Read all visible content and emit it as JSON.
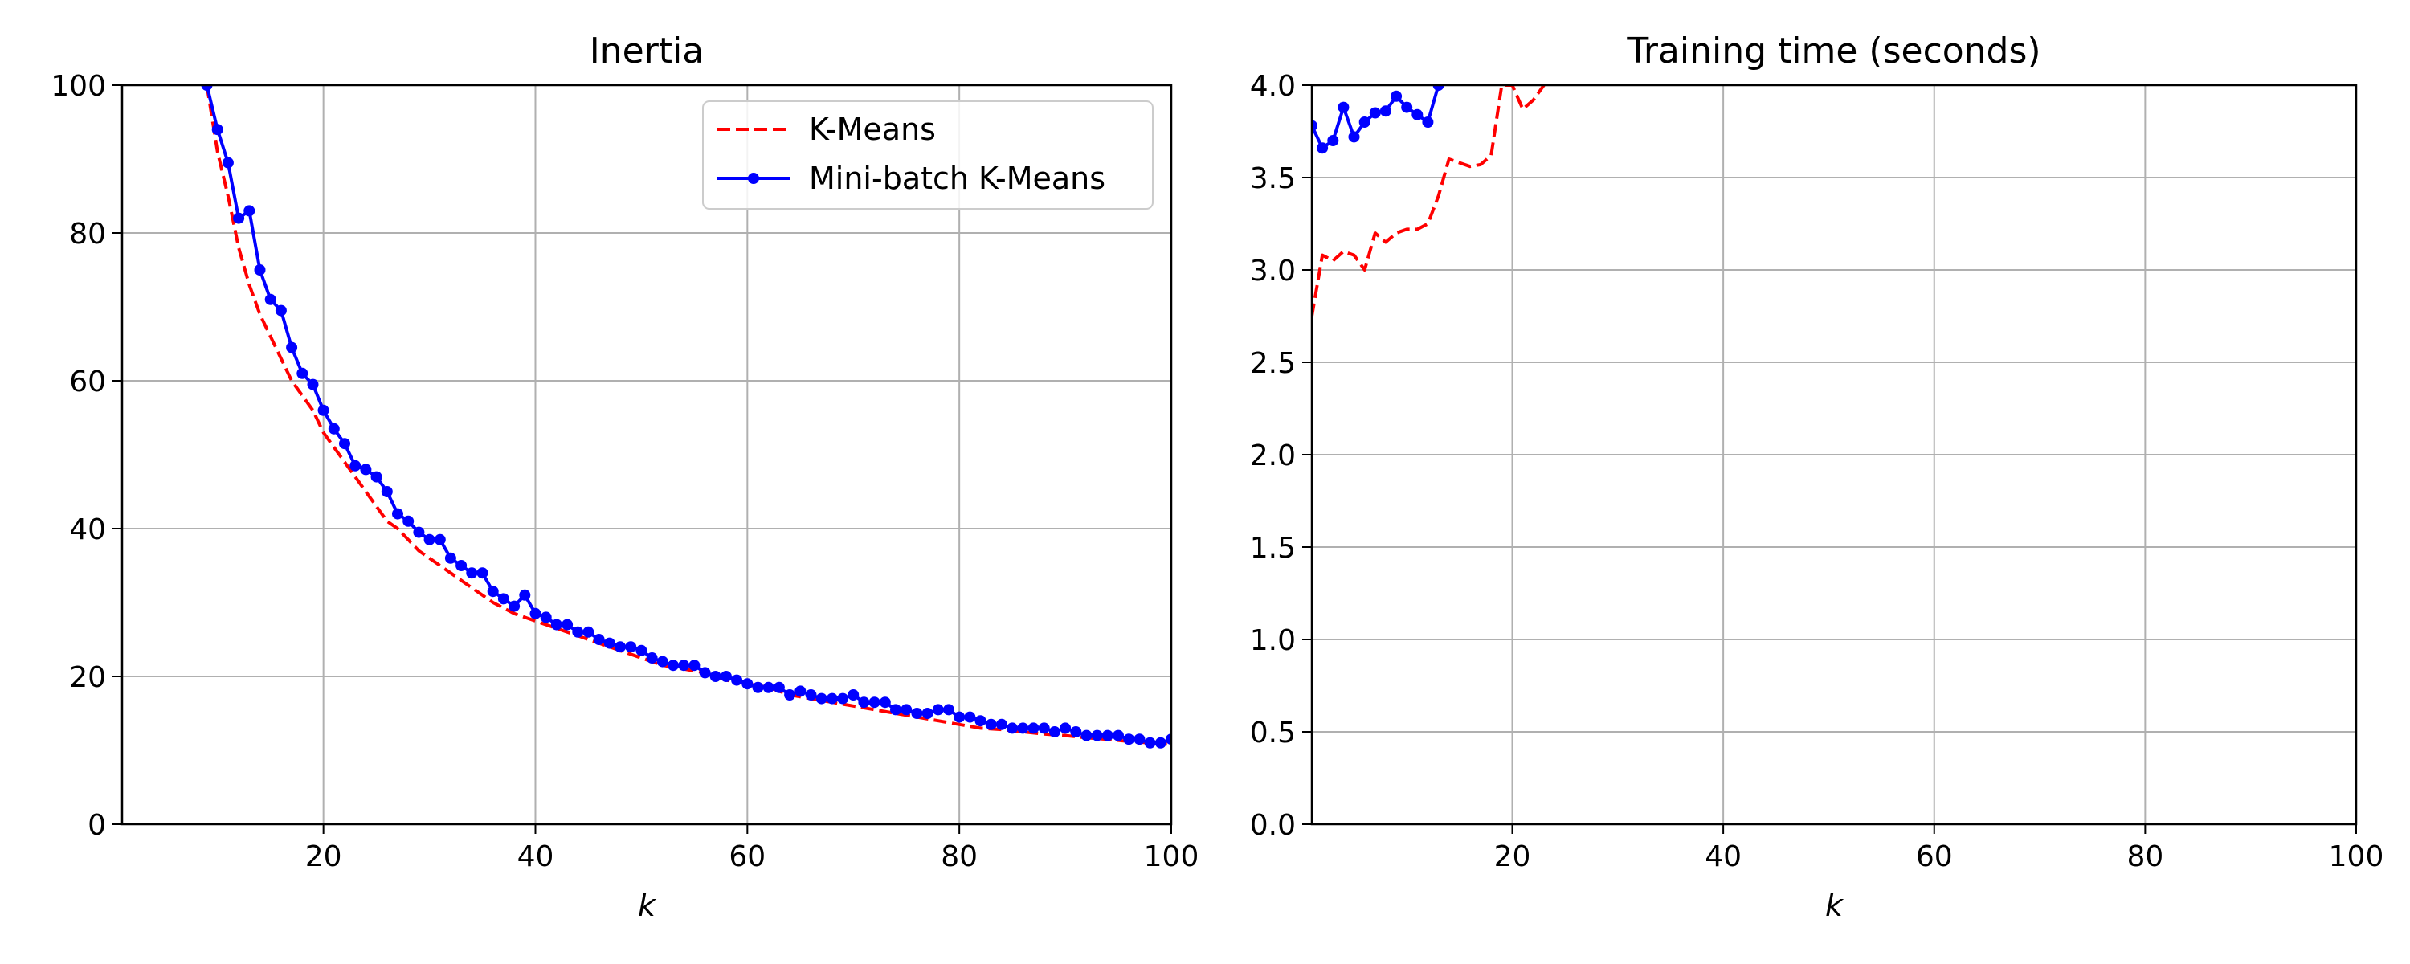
{
  "colors": {
    "kmeans": "#ff0000",
    "minibatch": "#0000ff",
    "grid": "#b0b0b0",
    "legend_border": "#cccccc"
  },
  "legend": {
    "kmeans_label": "K-Means",
    "minibatch_label": "Mini-batch K-Means",
    "placement": "upper-right of left chart"
  },
  "chart_data": [
    {
      "type": "line",
      "title": "Inertia",
      "xlabel": "k",
      "ylabel": "",
      "xlim": [
        1,
        100
      ],
      "ylim": [
        0,
        100
      ],
      "grid": true,
      "legend": true,
      "xticks": [
        "20",
        "40",
        "60",
        "80",
        "100"
      ],
      "yticks": [
        "0",
        "20",
        "40",
        "60",
        "80",
        "100"
      ],
      "series": [
        {
          "name": "K-Means",
          "style": "dashed",
          "x": [
            9,
            10,
            11,
            12,
            13,
            14,
            15,
            16,
            17,
            18,
            19,
            20,
            21,
            22,
            23,
            24,
            25,
            26,
            27,
            28,
            29,
            30,
            32,
            34,
            36,
            38,
            40,
            42,
            44,
            46,
            48,
            50,
            52,
            54,
            56,
            58,
            60,
            62,
            64,
            66,
            68,
            70,
            72,
            74,
            76,
            78,
            80,
            82,
            84,
            86,
            88,
            90,
            92,
            94,
            96,
            98,
            100
          ],
          "y": [
            100,
            91,
            85,
            78,
            73,
            69,
            66,
            63,
            60,
            58,
            56,
            53,
            51,
            49,
            47,
            45,
            43,
            41,
            40,
            38.5,
            37,
            36,
            34,
            32,
            30,
            28.5,
            27.5,
            26.5,
            25.5,
            24.5,
            23.5,
            22.5,
            21.5,
            21,
            20.5,
            19.5,
            19,
            18.5,
            17.5,
            17,
            16.5,
            16,
            15.5,
            15,
            14.5,
            14,
            13.5,
            13,
            12.8,
            12.5,
            12.2,
            12,
            11.7,
            11.5,
            11.2,
            11,
            10.8
          ]
        },
        {
          "name": "Mini-batch K-Means",
          "style": "solid-markers",
          "x": [
            9,
            10,
            11,
            12,
            13,
            14,
            15,
            16,
            17,
            18,
            19,
            20,
            21,
            22,
            23,
            24,
            25,
            26,
            27,
            28,
            29,
            30,
            31,
            32,
            33,
            34,
            35,
            36,
            37,
            38,
            39,
            40,
            41,
            42,
            43,
            44,
            45,
            46,
            47,
            48,
            49,
            50,
            51,
            52,
            53,
            54,
            55,
            56,
            57,
            58,
            59,
            60,
            61,
            62,
            63,
            64,
            65,
            66,
            67,
            68,
            69,
            70,
            71,
            72,
            73,
            74,
            75,
            76,
            77,
            78,
            79,
            80,
            81,
            82,
            83,
            84,
            85,
            86,
            87,
            88,
            89,
            90,
            91,
            92,
            93,
            94,
            95,
            96,
            97,
            98,
            99,
            100
          ],
          "y": [
            100,
            94,
            89.5,
            82,
            83,
            75,
            71,
            69.5,
            64.5,
            61,
            59.5,
            56,
            53.5,
            51.5,
            48.5,
            48,
            47,
            45,
            42,
            41,
            39.5,
            38.5,
            38.5,
            36,
            35,
            34,
            34,
            31.5,
            30.5,
            29.5,
            31,
            28.5,
            28,
            27,
            27,
            26,
            26,
            25,
            24.5,
            24,
            24,
            23.5,
            22.5,
            22,
            21.5,
            21.5,
            21.5,
            20.5,
            20,
            20,
            19.5,
            19,
            18.5,
            18.5,
            18.5,
            17.5,
            18,
            17.5,
            17,
            17,
            17,
            17.5,
            16.5,
            16.5,
            16.5,
            15.5,
            15.5,
            15,
            15,
            15.5,
            15.5,
            14.5,
            14.5,
            14,
            13.5,
            13.5,
            13,
            13,
            13,
            13,
            12.5,
            13,
            12.5,
            12,
            12,
            12,
            12,
            11.5,
            11.5,
            11,
            11,
            11.5
          ]
        }
      ]
    },
    {
      "type": "line",
      "title": "Training time (seconds)",
      "xlabel": "k",
      "ylabel": "",
      "xlim": [
        1,
        100
      ],
      "ylim": [
        0,
        4
      ],
      "grid": true,
      "legend": false,
      "xticks": [
        "20",
        "40",
        "60",
        "80",
        "100"
      ],
      "yticks": [
        "0.0",
        "0.5",
        "1.0",
        "1.5",
        "2.0",
        "2.5",
        "3.0",
        "3.5",
        "4.0"
      ],
      "series": [
        {
          "name": "K-Means",
          "style": "dashed",
          "x": [
            1,
            2,
            3,
            4,
            5,
            6,
            7,
            8,
            9,
            10,
            11,
            12,
            13,
            14,
            15,
            16,
            17,
            18,
            19,
            20,
            21,
            22,
            23
          ],
          "y": [
            2.75,
            3.08,
            3.05,
            3.1,
            3.08,
            3.0,
            3.2,
            3.15,
            3.2,
            3.22,
            3.22,
            3.25,
            3.4,
            3.6,
            3.58,
            3.56,
            3.57,
            3.62,
            4.0,
            4.0,
            3.87,
            3.92,
            4.0
          ]
        },
        {
          "name": "Mini-batch K-Means",
          "style": "solid-markers",
          "x": [
            1,
            2,
            3,
            4,
            5,
            6,
            7,
            8,
            9,
            10,
            11,
            12,
            13
          ],
          "y": [
            3.78,
            3.66,
            3.7,
            3.88,
            3.72,
            3.8,
            3.85,
            3.86,
            3.94,
            3.88,
            3.84,
            3.8,
            4.0
          ]
        }
      ]
    }
  ]
}
